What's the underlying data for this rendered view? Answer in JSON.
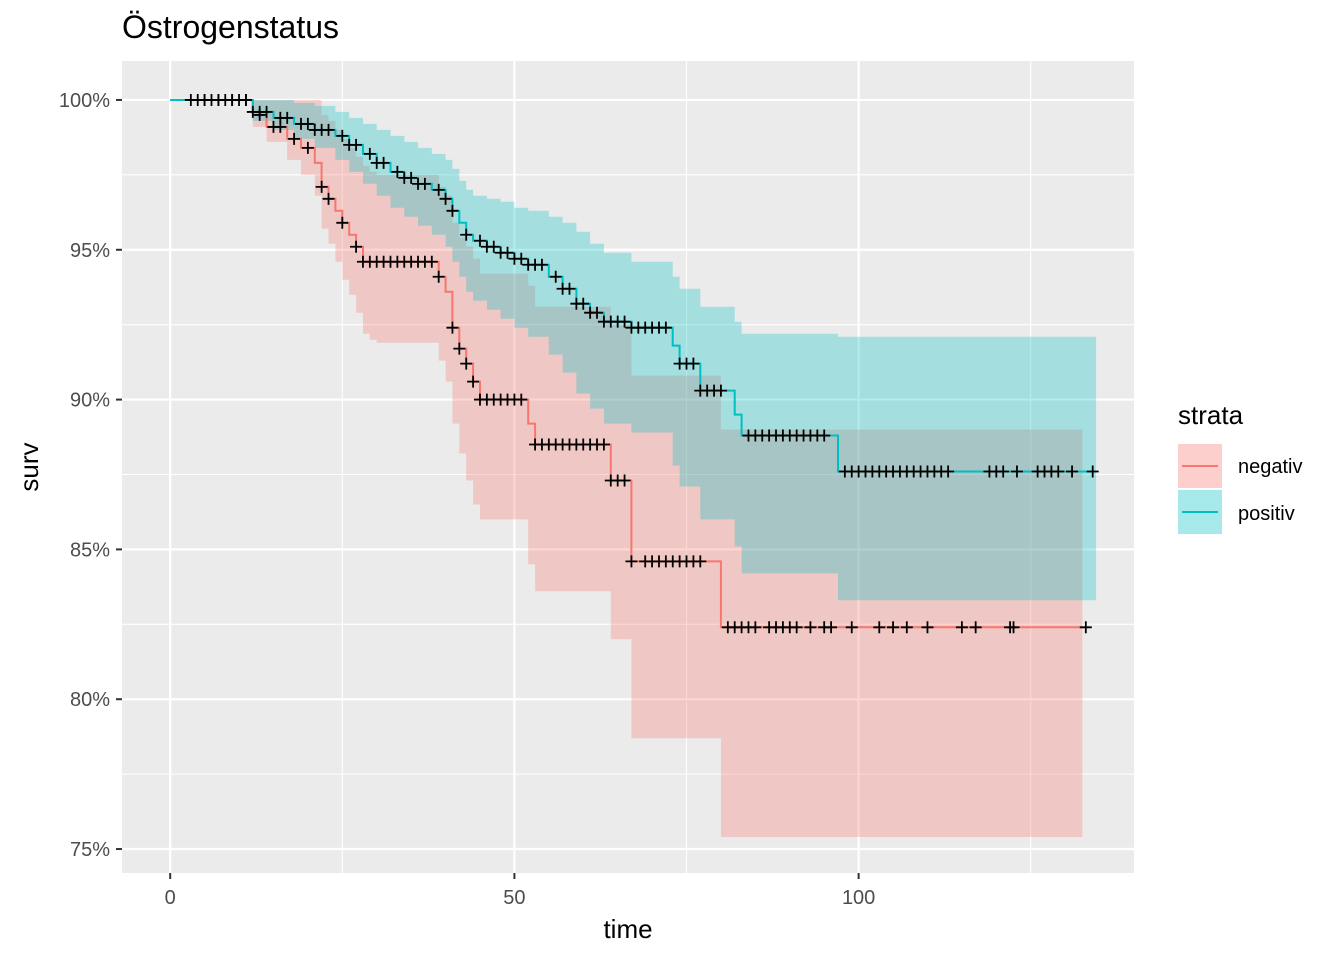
{
  "chart_data": {
    "type": "line",
    "subtype": "kaplan-meier survival curves with confidence bands and censoring marks",
    "title": "Östrogenstatus",
    "xlabel": "time",
    "ylabel": "surv",
    "xlim": [
      -7,
      140
    ],
    "ylim": [
      74.2,
      101.3
    ],
    "x_ticks": [
      0,
      50,
      100
    ],
    "x_tick_labels": [
      "0",
      "50",
      "100"
    ],
    "y_ticks": [
      75,
      80,
      85,
      90,
      95,
      100
    ],
    "y_tick_labels": [
      "75%",
      "80%",
      "85%",
      "90%",
      "95%",
      "100%"
    ],
    "grid": true,
    "background": "#ebebeb",
    "legend": {
      "title": "strata",
      "position": "right",
      "entries": [
        "negativ",
        "positiv"
      ]
    },
    "series": [
      {
        "name": "negativ",
        "color": "#f8766d",
        "step_x": [
          0,
          12,
          14,
          17,
          19,
          21,
          22,
          23,
          24,
          25,
          26,
          27,
          28,
          29,
          30,
          39,
          40,
          41,
          42,
          43,
          44,
          45,
          52,
          53,
          64,
          67,
          80,
          132.5
        ],
        "step_y": [
          100,
          99.5,
          99.1,
          98.7,
          98.4,
          97.9,
          97.1,
          96.7,
          96.3,
          95.9,
          95.5,
          95.1,
          94.6,
          94.6,
          94.6,
          94.1,
          93.6,
          92.4,
          91.7,
          91.2,
          90.6,
          90.0,
          89.2,
          88.5,
          87.3,
          84.6,
          82.4,
          82.4
        ],
        "lower": [
          100,
          99.1,
          98.6,
          98.0,
          97.5,
          96.8,
          95.7,
          95.2,
          94.6,
          94.0,
          93.5,
          92.9,
          92.2,
          92.0,
          91.9,
          91.3,
          90.6,
          89.2,
          88.2,
          87.3,
          86.5,
          86.0,
          84.5,
          83.6,
          82.0,
          78.7,
          75.4,
          75.4
        ],
        "upper": [
          100,
          100,
          100,
          100,
          100,
          100,
          99.5,
          99.3,
          99.0,
          98.7,
          98.4,
          98.1,
          97.8,
          97.6,
          97.5,
          97.1,
          96.8,
          95.9,
          95.4,
          95.1,
          94.7,
          94.2,
          93.8,
          93.1,
          92.5,
          90.8,
          89.0,
          89.0
        ],
        "censor_x": [
          5,
          7,
          9,
          11,
          13,
          15,
          16,
          18,
          20,
          22,
          23,
          25,
          27,
          28,
          29,
          30,
          31,
          32,
          33,
          34,
          35,
          36,
          37,
          38,
          39,
          41,
          42,
          43,
          44,
          45,
          46,
          47,
          48,
          49,
          50,
          51,
          53,
          54,
          55,
          56,
          57,
          58,
          59,
          60,
          61,
          62,
          63,
          64,
          65,
          66,
          67,
          69,
          70,
          71,
          72,
          73,
          74,
          75,
          76,
          77,
          81,
          82,
          83,
          84,
          85,
          87,
          88,
          89,
          90,
          91,
          93,
          95,
          96,
          99,
          103,
          105,
          107,
          110,
          115,
          117,
          122,
          122.5,
          133
        ]
      },
      {
        "name": "positiv",
        "color": "#00bfc4",
        "step_x": [
          0,
          12,
          15,
          18,
          21,
          24,
          26,
          28,
          30,
          32,
          34,
          36,
          38,
          40,
          41,
          42,
          43,
          44,
          46,
          48,
          50,
          52,
          55,
          57,
          59,
          61,
          63,
          67,
          73,
          74,
          77,
          82,
          83,
          96,
          97,
          134.5
        ],
        "step_y": [
          100,
          99.6,
          99.4,
          99.2,
          99.0,
          98.8,
          98.5,
          98.2,
          97.9,
          97.6,
          97.4,
          97.2,
          97.0,
          96.7,
          96.3,
          95.9,
          95.5,
          95.3,
          95.1,
          94.9,
          94.7,
          94.5,
          94.1,
          93.7,
          93.2,
          92.9,
          92.6,
          92.4,
          91.8,
          91.2,
          90.3,
          89.5,
          88.8,
          88.8,
          87.6,
          87.6
        ],
        "lower": [
          100,
          99.3,
          99.0,
          98.7,
          98.4,
          98.0,
          97.6,
          97.2,
          96.8,
          96.4,
          96.1,
          95.8,
          95.5,
          95.1,
          94.6,
          94.1,
          93.6,
          93.3,
          93.0,
          92.7,
          92.4,
          92.1,
          91.5,
          90.9,
          90.2,
          89.7,
          89.2,
          88.9,
          87.8,
          87.1,
          86.0,
          85.1,
          84.2,
          84.2,
          83.3,
          83.3
        ],
        "upper": [
          100,
          100,
          100,
          99.9,
          99.8,
          99.6,
          99.4,
          99.2,
          99.0,
          98.8,
          98.6,
          98.4,
          98.2,
          98.0,
          97.7,
          97.3,
          97.0,
          96.8,
          96.7,
          96.6,
          96.4,
          96.3,
          96.1,
          95.9,
          95.6,
          95.2,
          94.9,
          94.6,
          94.1,
          93.7,
          93.1,
          92.6,
          92.2,
          92.2,
          92.1,
          92.1
        ],
        "censor_x": [
          3,
          4,
          5,
          6,
          7,
          8,
          9,
          10,
          11,
          12,
          13,
          14,
          16,
          17,
          19,
          20,
          21,
          22,
          23,
          25,
          26,
          27,
          29,
          30,
          31,
          33,
          34,
          35,
          36,
          37,
          39,
          40,
          41,
          43,
          45,
          46,
          47,
          48,
          49,
          50,
          51,
          52,
          53,
          54,
          56,
          57,
          58,
          59,
          60,
          61,
          62,
          63,
          64,
          65,
          66,
          67,
          68,
          69,
          70,
          71,
          72,
          74,
          75,
          76,
          77,
          78,
          79,
          80,
          84,
          85,
          86,
          87,
          88,
          89,
          90,
          91,
          92,
          93,
          94,
          95,
          98,
          99,
          100,
          101,
          102,
          103,
          104,
          105,
          106,
          107,
          108,
          109,
          110,
          111,
          112,
          113,
          119,
          120,
          121,
          123,
          126,
          127,
          128,
          129,
          131,
          134
        ]
      }
    ]
  }
}
